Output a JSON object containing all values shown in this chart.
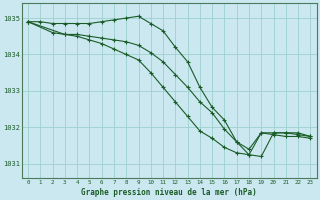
{
  "title": "Graphe pression niveau de la mer (hPa)",
  "bg_color": "#cbe8f0",
  "grid_color": "#9dcfcf",
  "line_color": "#1a5c28",
  "xlim": [
    -0.5,
    23.5
  ],
  "ylim": [
    1030.6,
    1035.4
  ],
  "yticks": [
    1031,
    1032,
    1033,
    1034,
    1035
  ],
  "xticks": [
    0,
    1,
    2,
    3,
    4,
    5,
    6,
    7,
    8,
    9,
    10,
    11,
    12,
    13,
    14,
    15,
    16,
    17,
    18,
    19,
    20,
    21,
    22,
    23
  ],
  "series": [
    {
      "x": [
        0,
        1,
        2,
        3,
        4,
        5,
        6,
        7,
        8,
        9,
        10,
        11,
        12,
        13,
        14,
        15,
        16,
        17,
        18,
        19,
        20,
        21,
        22,
        23
      ],
      "y": [
        1034.9,
        1034.9,
        1034.85,
        1034.85,
        1034.85,
        1034.85,
        1034.9,
        1034.95,
        1035.0,
        1035.05,
        1034.85,
        1034.65,
        1034.2,
        1033.8,
        1033.1,
        1032.55,
        1032.2,
        1031.6,
        1031.25,
        1031.2,
        1031.85,
        1031.85,
        1031.85,
        1031.75
      ]
    },
    {
      "x": [
        0,
        2,
        3,
        4,
        5,
        6,
        7,
        8,
        9,
        10,
        11,
        12,
        13,
        14,
        15,
        16,
        17,
        18,
        19,
        20,
        21,
        22,
        23
      ],
      "y": [
        1034.9,
        1034.6,
        1034.55,
        1034.55,
        1034.5,
        1034.45,
        1034.4,
        1034.35,
        1034.25,
        1034.05,
        1033.8,
        1033.45,
        1033.1,
        1032.7,
        1032.4,
        1031.95,
        1031.6,
        1031.4,
        1031.85,
        1031.85,
        1031.85,
        1031.8,
        1031.75
      ]
    },
    {
      "x": [
        0,
        3,
        4,
        5,
        6,
        7,
        8,
        9,
        10,
        11,
        12,
        13,
        14,
        15,
        16,
        17,
        18,
        19,
        20,
        21,
        22,
        23
      ],
      "y": [
        1034.9,
        1034.55,
        1034.5,
        1034.4,
        1034.3,
        1034.15,
        1034.0,
        1033.85,
        1033.5,
        1033.1,
        1032.7,
        1032.3,
        1031.9,
        1031.7,
        1031.45,
        1031.3,
        1031.25,
        1031.85,
        1031.8,
        1031.75,
        1031.75,
        1031.7
      ]
    }
  ]
}
